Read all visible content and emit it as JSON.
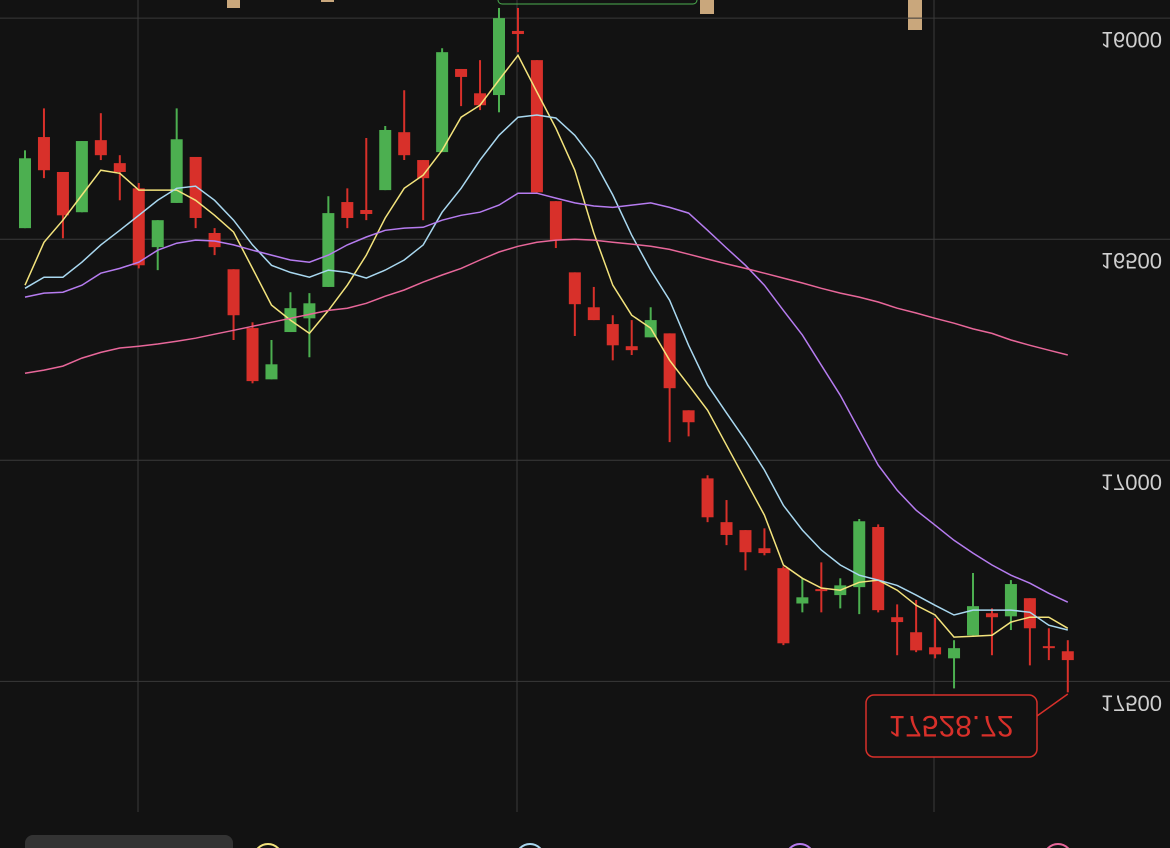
{
  "chart_data": {
    "type": "candlestick",
    "up_color": "#d8302a",
    "down_color": "#4caf50",
    "ylim": [
      15959,
      17877
    ],
    "yticks": [
      16000,
      16500,
      17000,
      17500
    ],
    "grid": true,
    "last_price": 17528.72,
    "open": [
      16475,
      16269,
      16348,
      16439,
      16276,
      16328,
      16385,
      16518,
      16418,
      16314,
      16486,
      16568,
      16701,
      16817,
      16710,
      16679,
      16608,
      16416,
      16434,
      16389,
      16258,
      16321,
      16303,
      16115,
      16170,
      16174,
      16029,
      16095,
      16414,
      16575,
      16654,
      16692,
      16742,
      16722,
      16713,
      16887,
      17041,
      17140,
      17158,
      17199,
      17244,
      17324,
      17292,
      17305,
      17287,
      17151,
      17355,
      17389,
      17423,
      17448,
      17396,
      17346,
      17353,
      17312,
      17421,
      17432
    ],
    "high": [
      16475,
      16362,
      16498,
      16439,
      16321,
      16412,
      16566,
      16570,
      16418,
      16475,
      16536,
      16728,
      16826,
      16817,
      16710,
      16767,
      16608,
      16475,
      16457,
      16389,
      16321,
      16457,
      16303,
      16199,
      16208,
      16213,
      16077,
      16394,
      16520,
      16719,
      16683,
      16774,
      16762,
      16722,
      16959,
      16946,
      17140,
      17192,
      17249,
      17215,
      17418,
      17344,
      17344,
      17335,
      17348,
      17344,
      17441,
      17434,
      17448,
      17516,
      17396,
      17441,
      17384,
      17464,
      17452,
      17525
    ],
    "low": [
      16299,
      16204,
      16348,
      16278,
      16215,
      16310,
      16373,
      16457,
      16204,
      16314,
      16475,
      16568,
      16688,
      16728,
      16620,
      16622,
      16403,
      16385,
      16271,
      16244,
      16163,
      16321,
      16068,
      16115,
      16095,
      15977,
      15977,
      16095,
      16414,
      16575,
      16608,
      16672,
      16683,
      16654,
      16713,
      16887,
      17034,
      17090,
      17158,
      17154,
      17240,
      17267,
      17231,
      17267,
      17133,
      17145,
      17326,
      17316,
      17357,
      17407,
      17255,
      17335,
      17271,
      17312,
      17380,
      17407
    ],
    "close": [
      16317,
      16344,
      16446,
      16278,
      16310,
      16348,
      16559,
      16457,
      16274,
      16452,
      16518,
      16672,
      16821,
      16783,
      16656,
      16645,
      16441,
      16452,
      16443,
      16253,
      16310,
      16362,
      16077,
      16133,
      16197,
      16000,
      16036,
      16394,
      16502,
      16647,
      16683,
      16740,
      16751,
      16683,
      16837,
      16914,
      17129,
      17169,
      17208,
      17210,
      17414,
      17310,
      17296,
      17283,
      17138,
      17339,
      17366,
      17430,
      17439,
      17425,
      17330,
      17355,
      17280,
      17380,
      17425,
      17452
    ],
    "series": [
      {
        "color": "#f3e37c",
        "values": [
          16604,
          16507,
          16457,
          16400,
          16344,
          16351,
          16389,
          16389,
          16389,
          16412,
          16446,
          16484,
          16566,
          16649,
          16683,
          16713,
          16661,
          16604,
          16536,
          16452,
          16385,
          16355,
          16299,
          16224,
          16197,
          16140,
          16084,
          16167,
          16249,
          16344,
          16486,
          16604,
          16672,
          16701,
          16774,
          16830,
          16887,
          16966,
          17045,
          17124,
          17237,
          17267,
          17289,
          17294,
          17276,
          17271,
          17294,
          17328,
          17350,
          17400,
          17398,
          17396,
          17366,
          17355,
          17355,
          17380
        ]
      },
      {
        "color": "#a9d8f0",
        "values": [
          16611,
          16586,
          16586,
          16552,
          16513,
          16480,
          16446,
          16412,
          16385,
          16380,
          16412,
          16457,
          16513,
          16559,
          16575,
          16586,
          16570,
          16575,
          16588,
          16570,
          16547,
          16513,
          16439,
          16385,
          16321,
          16265,
          16224,
          16219,
          16226,
          16265,
          16321,
          16400,
          16491,
          16570,
          16638,
          16740,
          16830,
          16893,
          16955,
          17022,
          17102,
          17158,
          17203,
          17237,
          17260,
          17271,
          17283,
          17305,
          17328,
          17350,
          17339,
          17339,
          17339,
          17344,
          17373,
          17384
        ]
      },
      {
        "color": "#b67cf0",
        "values": [
          16631,
          16622,
          16620,
          16604,
          16577,
          16566,
          16552,
          16525,
          16509,
          16502,
          16504,
          16513,
          16525,
          16536,
          16547,
          16552,
          16536,
          16513,
          16495,
          16480,
          16475,
          16473,
          16457,
          16446,
          16439,
          16423,
          16396,
          16396,
          16407,
          16418,
          16425,
          16428,
          16423,
          16418,
          16428,
          16441,
          16480,
          16520,
          16559,
          16604,
          16661,
          16717,
          16785,
          16853,
          16932,
          17011,
          17068,
          17113,
          17147,
          17181,
          17210,
          17237,
          17260,
          17278,
          17301,
          17321
        ]
      },
      {
        "color": "#e8679a",
        "values": [
          16803,
          16796,
          16787,
          16769,
          16756,
          16746,
          16742,
          16737,
          16731,
          16724,
          16715,
          16706,
          16697,
          16688,
          16679,
          16670,
          16661,
          16656,
          16645,
          16629,
          16615,
          16597,
          16581,
          16566,
          16547,
          16529,
          16516,
          16507,
          16502,
          16500,
          16502,
          16507,
          16511,
          16516,
          16523,
          16534,
          16545,
          16556,
          16566,
          16577,
          16588,
          16599,
          16611,
          16622,
          16631,
          16642,
          16656,
          16667,
          16679,
          16690,
          16703,
          16713,
          16728,
          16740,
          16751,
          16762
        ]
      }
    ]
  }
}
